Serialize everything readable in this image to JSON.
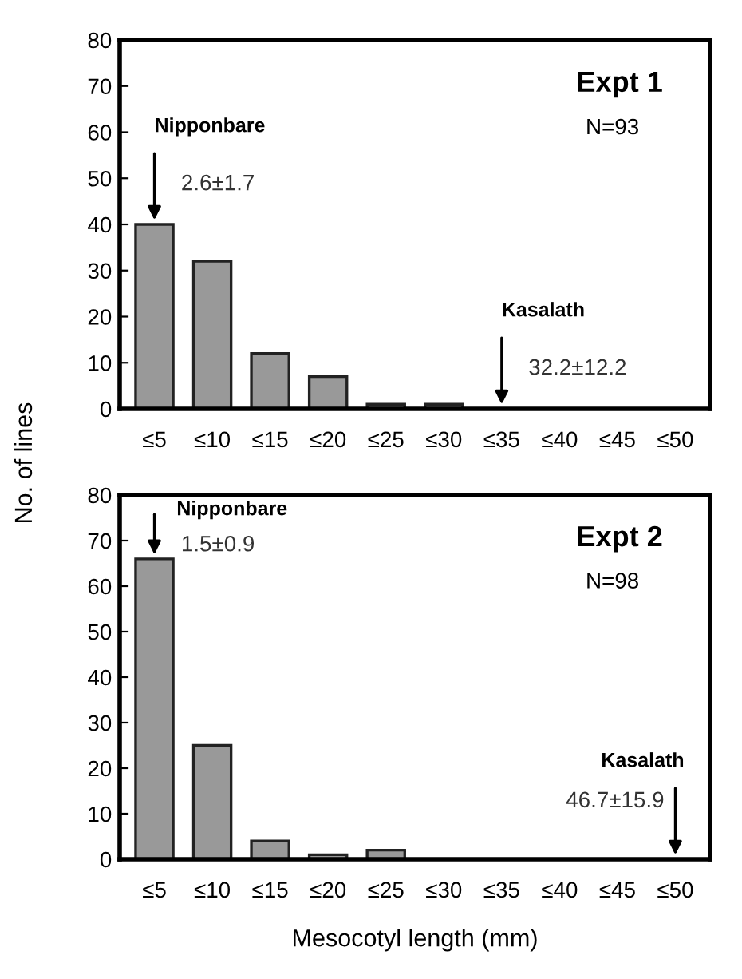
{
  "chart_data": [
    {
      "type": "bar",
      "title": "Expt 1",
      "ylabel": "No. of lines",
      "categories": [
        "≤5",
        "≤10",
        "≤15",
        "≤20",
        "≤25",
        "≤30",
        "≤35",
        "≤40",
        "≤45",
        "≤50"
      ],
      "values": [
        40,
        32,
        12,
        7,
        1,
        1,
        0,
        0,
        0,
        0
      ],
      "color": "#999999",
      "ylim": [
        0,
        80
      ],
      "yticks": [
        0,
        10,
        20,
        30,
        40,
        50,
        60,
        70,
        80
      ],
      "grid": false,
      "legend": false,
      "annotations": [
        "N=93",
        {
          "text": "Nipponbare",
          "x": "≤5",
          "y": 40
        },
        "2.6±1.7",
        {
          "text": "Kasalath",
          "x": "≤35",
          "y": 0
        },
        "32.2±12.2"
      ]
    },
    {
      "type": "bar",
      "title": "Expt 2",
      "xlabel": "Mesocotyl length (mm)",
      "categories": [
        "≤5",
        "≤10",
        "≤15",
        "≤20",
        "≤25",
        "≤30",
        "≤35",
        "≤40",
        "≤45",
        "≤50"
      ],
      "values": [
        66,
        25,
        4,
        1,
        2,
        0,
        0,
        0,
        0,
        0
      ],
      "color": "#999999",
      "ylim": [
        0,
        80
      ],
      "yticks": [
        0,
        10,
        20,
        30,
        40,
        50,
        60,
        70,
        80
      ],
      "grid": false,
      "legend": false,
      "annotations": [
        "N=98",
        {
          "text": "Nipponbare",
          "x": "≤5",
          "y": 66
        },
        "1.5±0.9",
        {
          "text": "Kasalath",
          "x": "≤50",
          "y": 0
        },
        "46.7±15.9"
      ]
    }
  ]
}
